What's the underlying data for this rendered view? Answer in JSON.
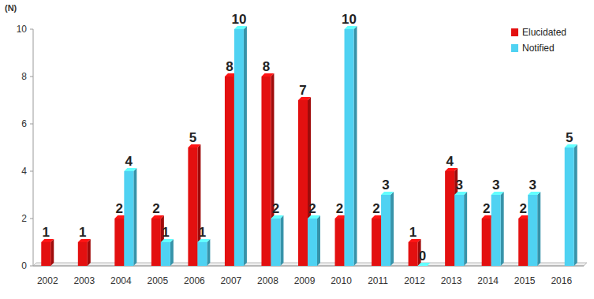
{
  "chart_data": {
    "type": "bar",
    "y_label": "(N)",
    "categories": [
      "2002",
      "2003",
      "2004",
      "2005",
      "2006",
      "2007",
      "2008",
      "2009",
      "2010",
      "2011",
      "2012",
      "2013",
      "2014",
      "2015",
      "2016"
    ],
    "series": [
      {
        "name": "Elucidated",
        "color": "#e31010",
        "values": [
          1,
          1,
          2,
          2,
          5,
          8,
          8,
          7,
          2,
          2,
          1,
          4,
          2,
          2,
          null
        ]
      },
      {
        "name": "Notified",
        "color": "#4fd2f2",
        "values": [
          null,
          null,
          4,
          1,
          1,
          10,
          2,
          2,
          10,
          3,
          0,
          3,
          3,
          3,
          5
        ]
      }
    ],
    "ylim": [
      0,
      10
    ],
    "yticks": [
      0,
      2,
      4,
      6,
      8,
      10
    ],
    "grid": false,
    "legend": "top-right",
    "data_labels": true
  }
}
